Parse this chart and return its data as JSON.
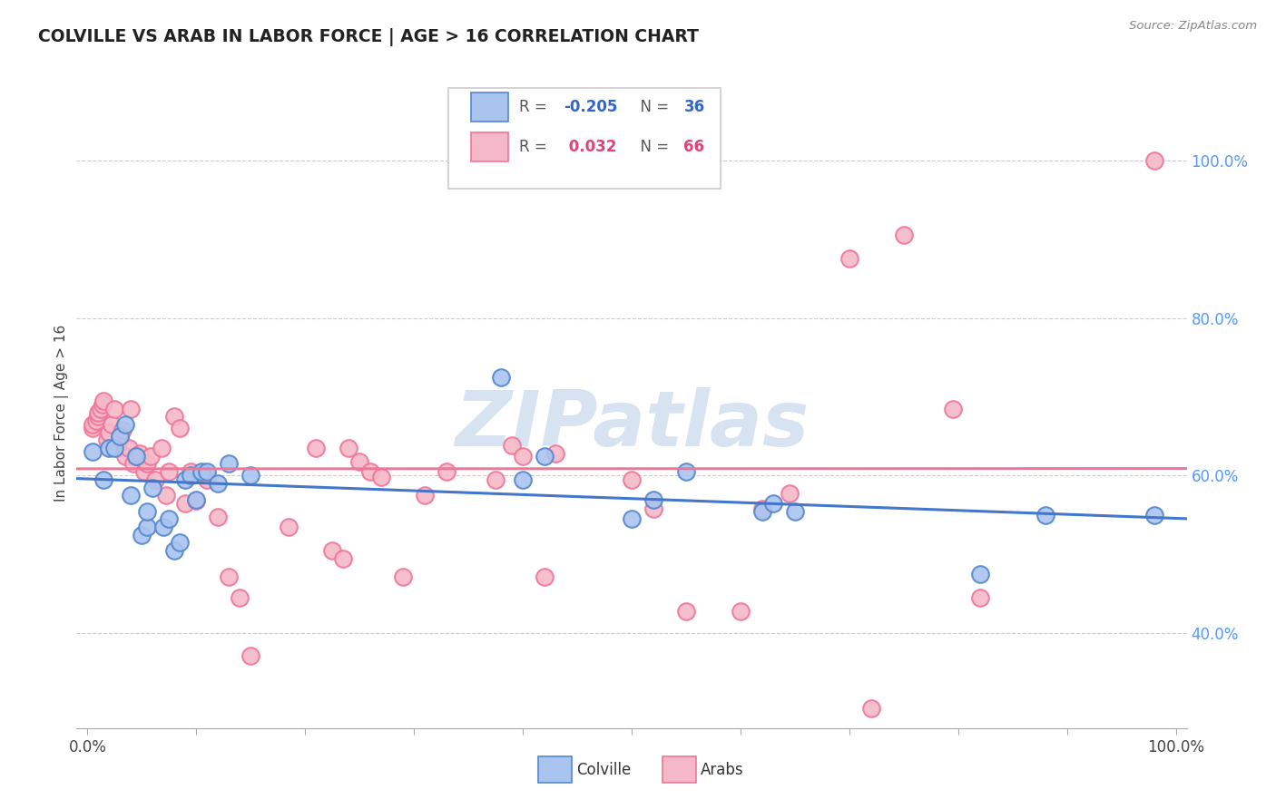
{
  "title": "COLVILLE VS ARAB IN LABOR FORCE | AGE > 16 CORRELATION CHART",
  "source": "Source: ZipAtlas.com",
  "ylabel": "In Labor Force | Age > 16",
  "xlim": [
    -0.01,
    1.01
  ],
  "ylim": [
    0.28,
    1.08
  ],
  "yticks_right": [
    0.4,
    0.6,
    0.8,
    1.0
  ],
  "ytick_right_labels": [
    "40.0%",
    "60.0%",
    "80.0%",
    "100.0%"
  ],
  "xtick_positions": [
    0.0,
    0.1,
    0.2,
    0.3,
    0.4,
    0.5,
    0.6,
    0.7,
    0.8,
    0.9,
    1.0
  ],
  "colville_color": "#aac4f0",
  "arabs_color": "#f5b8c8",
  "colville_edge_color": "#5588cc",
  "arabs_edge_color": "#ee7799",
  "colville_line_color": "#4477cc",
  "arabs_line_color": "#ee7799",
  "background_color": "#ffffff",
  "grid_color": "#cccccc",
  "legend_R_colville": "-0.205",
  "legend_N_colville": "36",
  "legend_R_arabs": "0.032",
  "legend_N_arabs": "66",
  "watermark": "ZIPatlas",
  "colville_x": [
    0.005,
    0.015,
    0.02,
    0.025,
    0.03,
    0.035,
    0.04,
    0.045,
    0.05,
    0.055,
    0.055,
    0.06,
    0.07,
    0.075,
    0.08,
    0.085,
    0.09,
    0.095,
    0.1,
    0.105,
    0.11,
    0.12,
    0.13,
    0.15,
    0.38,
    0.4,
    0.42,
    0.5,
    0.52,
    0.55,
    0.62,
    0.63,
    0.65,
    0.82,
    0.88,
    0.98
  ],
  "colville_y": [
    0.63,
    0.595,
    0.635,
    0.635,
    0.65,
    0.665,
    0.575,
    0.625,
    0.525,
    0.535,
    0.555,
    0.585,
    0.535,
    0.545,
    0.505,
    0.515,
    0.595,
    0.6,
    0.57,
    0.605,
    0.605,
    0.59,
    0.615,
    0.6,
    0.725,
    0.595,
    0.625,
    0.545,
    0.57,
    0.605,
    0.555,
    0.565,
    0.555,
    0.475,
    0.55,
    0.55
  ],
  "arabs_x": [
    0.005,
    0.005,
    0.008,
    0.01,
    0.01,
    0.012,
    0.014,
    0.015,
    0.018,
    0.02,
    0.022,
    0.025,
    0.028,
    0.03,
    0.032,
    0.035,
    0.038,
    0.04,
    0.042,
    0.045,
    0.048,
    0.052,
    0.055,
    0.058,
    0.062,
    0.068,
    0.072,
    0.075,
    0.08,
    0.085,
    0.09,
    0.095,
    0.1,
    0.11,
    0.12,
    0.13,
    0.14,
    0.15,
    0.185,
    0.21,
    0.225,
    0.235,
    0.24,
    0.25,
    0.26,
    0.27,
    0.29,
    0.31,
    0.33,
    0.375,
    0.39,
    0.4,
    0.42,
    0.43,
    0.5,
    0.52,
    0.55,
    0.6,
    0.62,
    0.645,
    0.7,
    0.72,
    0.75,
    0.795,
    0.82,
    0.98
  ],
  "arabs_y": [
    0.66,
    0.665,
    0.67,
    0.675,
    0.68,
    0.685,
    0.69,
    0.695,
    0.645,
    0.655,
    0.665,
    0.685,
    0.635,
    0.648,
    0.658,
    0.625,
    0.635,
    0.685,
    0.615,
    0.625,
    0.628,
    0.605,
    0.615,
    0.625,
    0.595,
    0.635,
    0.575,
    0.605,
    0.675,
    0.66,
    0.565,
    0.605,
    0.568,
    0.595,
    0.548,
    0.472,
    0.445,
    0.372,
    0.535,
    0.635,
    0.505,
    0.495,
    0.635,
    0.618,
    0.605,
    0.598,
    0.472,
    0.575,
    0.605,
    0.595,
    0.638,
    0.625,
    0.472,
    0.628,
    0.595,
    0.558,
    0.428,
    0.428,
    0.558,
    0.578,
    0.875,
    0.305,
    0.905,
    0.685,
    0.445,
    1.0
  ]
}
